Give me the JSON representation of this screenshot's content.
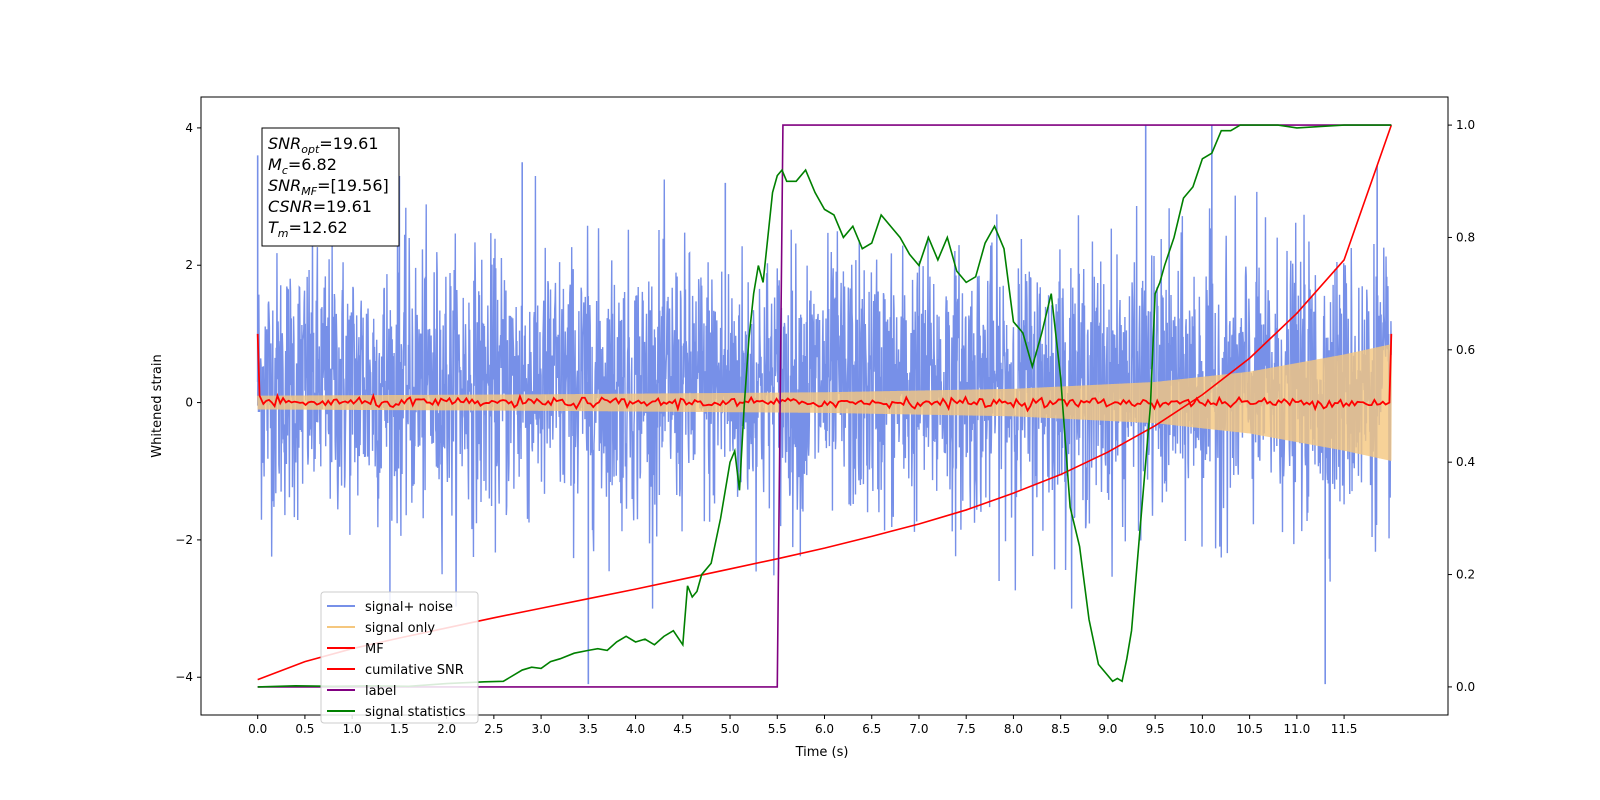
{
  "chart_data": {
    "type": "line",
    "title": "",
    "xlabel": "Time (s)",
    "ylabel": "Whitened strain",
    "xlim": [
      -0.6,
      12.6
    ],
    "ylim": [
      -4.55,
      4.45
    ],
    "y2lim": [
      -0.05,
      1.05
    ],
    "xticks": [
      "0.0",
      "0.5",
      "1.0",
      "1.5",
      "2.0",
      "2.5",
      "3.0",
      "3.5",
      "4.0",
      "4.5",
      "5.0",
      "5.5",
      "6.0",
      "6.5",
      "7.0",
      "7.5",
      "8.0",
      "8.5",
      "9.0",
      "9.5",
      "10.0",
      "10.5",
      "11.0",
      "11.5"
    ],
    "yticks": [
      "−4",
      "−2",
      "0",
      "2",
      "4"
    ],
    "y2ticks": [
      "0.0",
      "0.2",
      "0.4",
      "0.6",
      "0.8",
      "1.0"
    ],
    "grid": false,
    "legend_position": "lower-left",
    "stats_box": [
      {
        "sym": "SNR",
        "sub": "opt",
        "val": "=19.61"
      },
      {
        "sym": "M",
        "sub": "c",
        "val": "=6.82"
      },
      {
        "sym": "SNR",
        "sub": "MF",
        "val": "=[19.56]"
      },
      {
        "sym": "CSNR",
        "sub": "",
        "val": "=19.61"
      },
      {
        "sym": "T",
        "sub": "m",
        "val": "=12.62"
      }
    ],
    "series": [
      {
        "name": "signal+ noise",
        "color": "#7790e8",
        "axis": "left",
        "description_values": {
          "x_start": 0.0,
          "x_end": 12.0,
          "typical_range": [
            -2.0,
            2.6
          ],
          "peak_values": [
            [
              0.0,
              3.6
            ],
            [
              1.5,
              3.3
            ],
            [
              2.8,
              3.5
            ],
            [
              3.5,
              -4.1
            ],
            [
              4.95,
              3.2
            ],
            [
              9.4,
              4.05
            ],
            [
              10.1,
              4.05
            ],
            [
              11.3,
              -4.1
            ],
            [
              11.85,
              3.45
            ]
          ]
        }
      },
      {
        "name": "signal only",
        "color": "#f5c77e",
        "axis": "left",
        "envelope": [
          [
            0.0,
            0.1
          ],
          [
            3.0,
            0.12
          ],
          [
            6.0,
            0.15
          ],
          [
            8.0,
            0.2
          ],
          [
            9.5,
            0.3
          ],
          [
            10.5,
            0.45
          ],
          [
            11.5,
            0.7
          ],
          [
            12.0,
            0.85
          ]
        ]
      },
      {
        "name": "MF",
        "color": "#ff0000",
        "axis": "left",
        "x": [
          0.0,
          0.03,
          0.1,
          0.5,
          1.0,
          1.5,
          2.0,
          3.0,
          4.0,
          5.0,
          6.0,
          7.0,
          8.0,
          9.0,
          10.0,
          11.0,
          11.97,
          12.0
        ],
        "y": [
          1.0,
          0.1,
          0.05,
          0.05,
          0.0,
          0.05,
          0.0,
          0.0,
          0.0,
          0.02,
          0.0,
          0.0,
          0.0,
          0.0,
          0.0,
          0.05,
          0.0,
          1.0
        ]
      },
      {
        "name": "cumilative SNR",
        "color": "#ff0000",
        "axis": "right",
        "x": [
          0.0,
          0.5,
          1.0,
          1.5,
          2.0,
          2.5,
          3.0,
          3.5,
          4.0,
          4.5,
          5.0,
          5.5,
          6.0,
          6.5,
          7.0,
          7.5,
          8.0,
          8.5,
          9.0,
          9.5,
          10.0,
          10.5,
          11.0,
          11.5,
          12.0
        ],
        "y": [
          0.013,
          0.045,
          0.068,
          0.087,
          0.105,
          0.123,
          0.14,
          0.157,
          0.174,
          0.192,
          0.21,
          0.228,
          0.247,
          0.268,
          0.29,
          0.315,
          0.345,
          0.378,
          0.418,
          0.465,
          0.52,
          0.585,
          0.665,
          0.76,
          1.0
        ]
      },
      {
        "name": "label",
        "color": "#800080",
        "axis": "right",
        "x": [
          0.0,
          5.5,
          5.56,
          12.0
        ],
        "y": [
          0.0,
          0.0,
          1.0,
          1.0
        ]
      },
      {
        "name": "signal statistics",
        "color": "#008000",
        "axis": "right",
        "x": [
          0.0,
          0.4,
          0.8,
          1.2,
          1.6,
          2.0,
          2.4,
          2.6,
          2.8,
          2.9,
          3.0,
          3.1,
          3.2,
          3.35,
          3.5,
          3.6,
          3.7,
          3.8,
          3.9,
          4.0,
          4.1,
          4.2,
          4.3,
          4.4,
          4.5,
          4.55,
          4.6,
          4.65,
          4.7,
          4.8,
          4.9,
          5.0,
          5.05,
          5.1,
          5.15,
          5.2,
          5.25,
          5.3,
          5.35,
          5.4,
          5.45,
          5.5,
          5.55,
          5.6,
          5.7,
          5.8,
          5.9,
          6.0,
          6.1,
          6.2,
          6.3,
          6.4,
          6.5,
          6.6,
          6.7,
          6.8,
          6.9,
          7.0,
          7.1,
          7.2,
          7.3,
          7.4,
          7.5,
          7.6,
          7.7,
          7.8,
          7.85,
          7.9,
          8.0,
          8.1,
          8.2,
          8.3,
          8.4,
          8.5,
          8.6,
          8.7,
          8.8,
          8.9,
          9.0,
          9.05,
          9.1,
          9.15,
          9.2,
          9.25,
          9.3,
          9.35,
          9.4,
          9.45,
          9.5,
          9.55,
          9.6,
          9.7,
          9.8,
          9.9,
          10.0,
          10.1,
          10.2,
          10.3,
          10.4,
          10.5,
          10.6,
          10.8,
          11.0,
          11.5,
          12.0
        ],
        "y": [
          0.0,
          0.002,
          0.001,
          0.002,
          0.001,
          0.006,
          0.009,
          0.01,
          0.03,
          0.035,
          0.033,
          0.045,
          0.05,
          0.06,
          0.065,
          0.068,
          0.065,
          0.08,
          0.09,
          0.08,
          0.085,
          0.075,
          0.09,
          0.1,
          0.075,
          0.18,
          0.16,
          0.17,
          0.2,
          0.22,
          0.3,
          0.4,
          0.42,
          0.35,
          0.5,
          0.62,
          0.7,
          0.75,
          0.72,
          0.8,
          0.88,
          0.91,
          0.92,
          0.9,
          0.9,
          0.92,
          0.88,
          0.85,
          0.84,
          0.8,
          0.82,
          0.78,
          0.79,
          0.84,
          0.82,
          0.8,
          0.77,
          0.75,
          0.8,
          0.76,
          0.8,
          0.74,
          0.72,
          0.73,
          0.79,
          0.82,
          0.8,
          0.78,
          0.65,
          0.63,
          0.57,
          0.63,
          0.7,
          0.55,
          0.32,
          0.25,
          0.12,
          0.04,
          0.02,
          0.01,
          0.015,
          0.01,
          0.05,
          0.1,
          0.2,
          0.3,
          0.4,
          0.5,
          0.7,
          0.72,
          0.75,
          0.8,
          0.87,
          0.89,
          0.94,
          0.95,
          0.99,
          0.99,
          1.0,
          1.0,
          1.0,
          1.0,
          0.995,
          1.0,
          1.0
        ]
      }
    ]
  }
}
